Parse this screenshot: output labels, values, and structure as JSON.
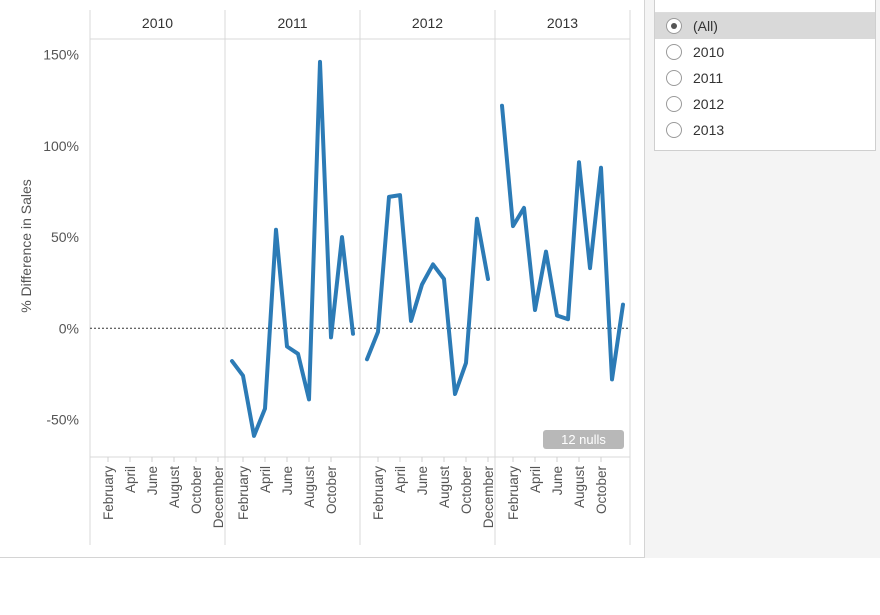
{
  "chart_data": {
    "type": "line",
    "ylabel": "% Difference in Sales",
    "panes": [
      "2010",
      "2011",
      "2012",
      "2013"
    ],
    "yticks": [
      "150%",
      "100%",
      "50%",
      "0%",
      "-50%"
    ],
    "ytick_values": [
      150,
      100,
      50,
      0,
      -50
    ],
    "ylim": [
      -70,
      158
    ],
    "month_labels": {
      "2010": [
        "February",
        "April",
        "June",
        "August",
        "October",
        "December"
      ],
      "2011": [
        "February",
        "April",
        "June",
        "August",
        "October"
      ],
      "2012": [
        "February",
        "April",
        "June",
        "August",
        "October",
        "December"
      ],
      "2013": [
        "February",
        "April",
        "June",
        "August",
        "October"
      ]
    },
    "series": [
      {
        "name": "",
        "color": "#2c7bb6",
        "points": [
          {
            "pane": "2011",
            "month": 1,
            "value": -18
          },
          {
            "pane": "2011",
            "month": 2,
            "value": -26
          },
          {
            "pane": "2011",
            "month": 3,
            "value": -59
          },
          {
            "pane": "2011",
            "month": 4,
            "value": -44
          },
          {
            "pane": "2011",
            "month": 5,
            "value": 54
          },
          {
            "pane": "2011",
            "month": 6,
            "value": -10
          },
          {
            "pane": "2011",
            "month": 7,
            "value": -14
          },
          {
            "pane": "2011",
            "month": 8,
            "value": -39
          },
          {
            "pane": "2011",
            "month": 9,
            "value": 146
          },
          {
            "pane": "2011",
            "month": 10,
            "value": -5
          },
          {
            "pane": "2011",
            "month": 11,
            "value": 50
          },
          {
            "pane": "2011",
            "month": 12,
            "value": -3
          },
          {
            "pane": "2012",
            "month": 1,
            "value": -17
          },
          {
            "pane": "2012",
            "month": 2,
            "value": -2
          },
          {
            "pane": "2012",
            "month": 3,
            "value": 72
          },
          {
            "pane": "2012",
            "month": 4,
            "value": 73
          },
          {
            "pane": "2012",
            "month": 5,
            "value": 4
          },
          {
            "pane": "2012",
            "month": 6,
            "value": 24
          },
          {
            "pane": "2012",
            "month": 7,
            "value": 35
          },
          {
            "pane": "2012",
            "month": 8,
            "value": 27
          },
          {
            "pane": "2012",
            "month": 9,
            "value": -36
          },
          {
            "pane": "2012",
            "month": 10,
            "value": -19
          },
          {
            "pane": "2012",
            "month": 11,
            "value": 60
          },
          {
            "pane": "2012",
            "month": 12,
            "value": 27
          },
          {
            "pane": "2013",
            "month": 1,
            "value": 122
          },
          {
            "pane": "2013",
            "month": 2,
            "value": 56
          },
          {
            "pane": "2013",
            "month": 3,
            "value": 66
          },
          {
            "pane": "2013",
            "month": 4,
            "value": 10
          },
          {
            "pane": "2013",
            "month": 5,
            "value": 42
          },
          {
            "pane": "2013",
            "month": 6,
            "value": 7
          },
          {
            "pane": "2013",
            "month": 7,
            "value": 5
          },
          {
            "pane": "2013",
            "month": 8,
            "value": 91
          },
          {
            "pane": "2013",
            "month": 9,
            "value": 33
          },
          {
            "pane": "2013",
            "month": 10,
            "value": 88
          },
          {
            "pane": "2013",
            "month": 11,
            "value": -28
          },
          {
            "pane": "2013",
            "month": 12,
            "value": 13
          }
        ]
      }
    ],
    "nulls_indicator": "12 nulls",
    "reference_line": 0,
    "grid": false
  },
  "filter": {
    "options": [
      "(All)",
      "2010",
      "2011",
      "2012",
      "2013"
    ],
    "selected": "(All)"
  }
}
